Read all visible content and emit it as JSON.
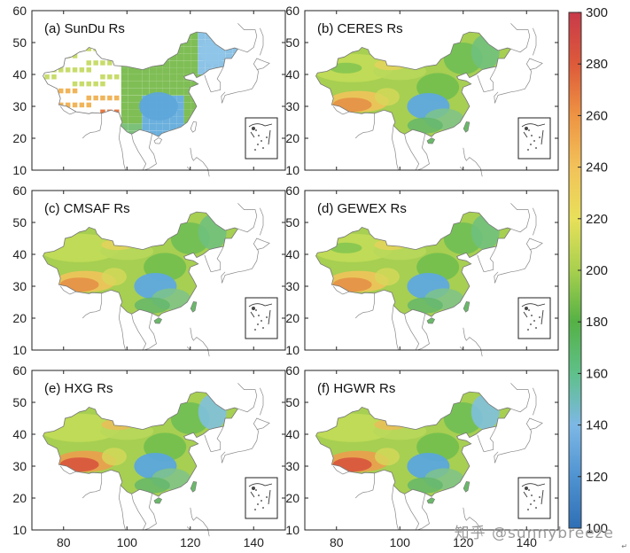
{
  "figure": {
    "panels": [
      {
        "id": "a",
        "title": "(a) SunDu Rs",
        "style": "stations"
      },
      {
        "id": "b",
        "title": "(b) CERES Rs",
        "style": "coarse"
      },
      {
        "id": "c",
        "title": "(c) CMSAF Rs",
        "style": "smooth"
      },
      {
        "id": "d",
        "title": "(d) GEWEX Rs",
        "style": "coarse"
      },
      {
        "id": "e",
        "title": "(e) HXG Rs",
        "style": "smooth-high"
      },
      {
        "id": "f",
        "title": "(f) HGWR Rs",
        "style": "smooth-high"
      }
    ],
    "lat_ticks": [
      "10",
      "20",
      "30",
      "40",
      "50",
      "60"
    ],
    "lon_ticks": [
      "80",
      "100",
      "120",
      "140"
    ],
    "lon_range": [
      70,
      150
    ],
    "lat_range": [
      10,
      60
    ],
    "colorbar": {
      "ticks": [
        "100",
        "120",
        "140",
        "160",
        "180",
        "200",
        "220",
        "240",
        "260",
        "280",
        "300"
      ],
      "range": [
        100,
        300
      ],
      "colors": [
        "#2f6fb5",
        "#4f93d1",
        "#7db8e5",
        "#5fc08a",
        "#55b145",
        "#a8d04e",
        "#e8e05a",
        "#f2c25a",
        "#ee9443",
        "#dd5a3a",
        "#c83a4a"
      ]
    }
  },
  "watermark": {
    "text": "知乎 @sunnybreeze"
  },
  "corner_mark": {
    "text": "↵"
  }
}
